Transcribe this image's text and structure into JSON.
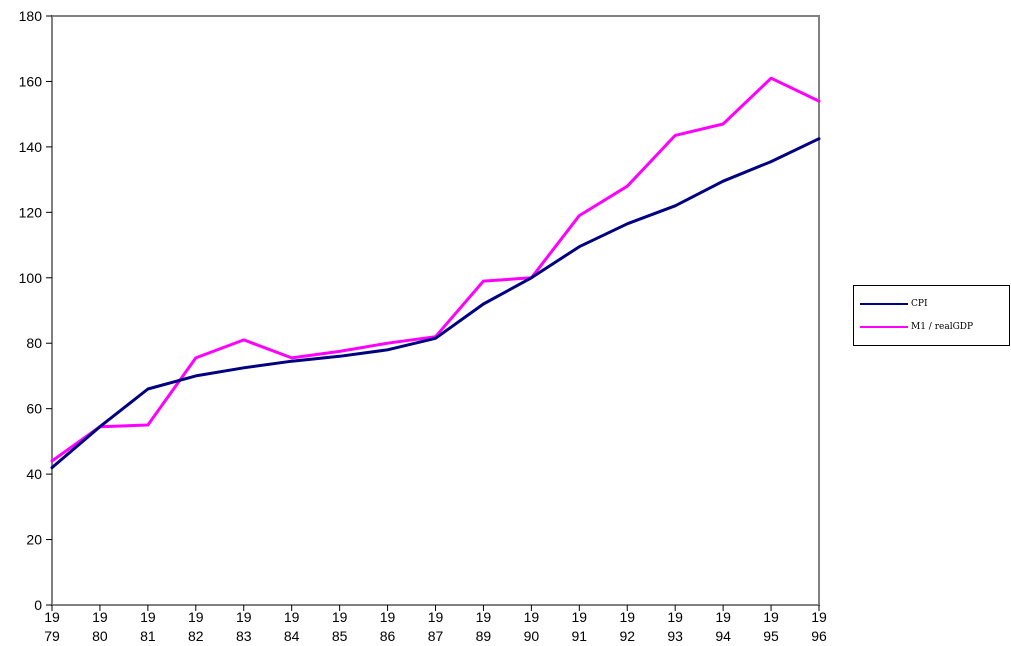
{
  "chart_data": {
    "type": "line",
    "categories": [
      "1979",
      "1980",
      "1981",
      "1982",
      "1983",
      "1984",
      "1985",
      "1986",
      "1987",
      "1989",
      "1990",
      "1991",
      "1992",
      "1993",
      "1994",
      "1995",
      "1996"
    ],
    "x_tick_labels_top": [
      "19",
      "19",
      "19",
      "19",
      "19",
      "19",
      "19",
      "19",
      "19",
      "19",
      "19",
      "19",
      "19",
      "19",
      "19",
      "19",
      "19"
    ],
    "x_tick_labels_bottom": [
      "79",
      "80",
      "81",
      "82",
      "83",
      "84",
      "85",
      "86",
      "87",
      "89",
      "90",
      "91",
      "92",
      "93",
      "94",
      "95",
      "96"
    ],
    "ylim": [
      0,
      180
    ],
    "yticks": [
      0,
      20,
      40,
      60,
      80,
      100,
      120,
      140,
      160,
      180
    ],
    "grid": false,
    "legend_position": "right",
    "series": [
      {
        "name": "CPI",
        "color": "#000080",
        "values": [
          42,
          54.5,
          66,
          70,
          72.5,
          74.5,
          76,
          78,
          81.5,
          92,
          100,
          109.5,
          116.5,
          122,
          129.5,
          135.5,
          142.5
        ]
      },
      {
        "name": "M1 / realGDP",
        "color": "#ff00ff",
        "values": [
          44,
          54.5,
          55,
          75.5,
          81,
          75.5,
          77.5,
          80,
          82,
          99,
          100,
          119,
          128,
          143.5,
          147,
          161,
          154
        ]
      }
    ]
  }
}
